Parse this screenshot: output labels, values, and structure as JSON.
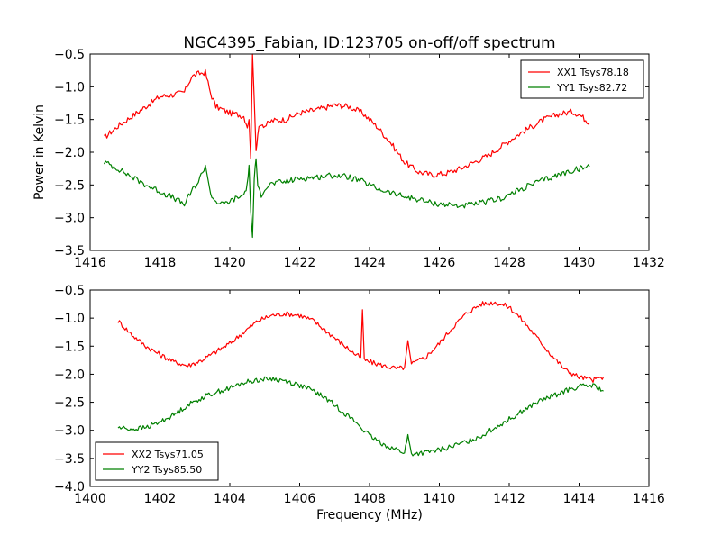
{
  "figure": {
    "title": "NGC4395_Fabian, ID:123705 on-off/off spectrum"
  },
  "chart_data": [
    {
      "type": "line",
      "title": "NGC4395_Fabian, ID:123705 on-off/off spectrum",
      "xlabel": "",
      "ylabel": "Power in Kelvin",
      "xlim": [
        1416,
        1432
      ],
      "ylim": [
        -3.5,
        -0.5
      ],
      "xticks": [
        1416,
        1418,
        1420,
        1422,
        1424,
        1426,
        1428,
        1430,
        1432
      ],
      "yticks": [
        -3.5,
        -3.0,
        -2.5,
        -2.0,
        -1.5,
        -1.0,
        -0.5
      ],
      "xtick_labels": [
        "1416",
        "1418",
        "1420",
        "1422",
        "1424",
        "1426",
        "1428",
        "1430",
        "1432"
      ],
      "ytick_labels": [
        "−3.5",
        "−3.0",
        "−2.5",
        "−2.0",
        "−1.5",
        "−1.0",
        "−0.5"
      ],
      "grid": false,
      "legend": "top-right",
      "series": [
        {
          "name": "XX1 Tsys78.18",
          "color": "#ff0000",
          "x": [
            1416.4,
            1416.8,
            1417.2,
            1417.6,
            1418.0,
            1418.4,
            1418.7,
            1418.9,
            1419.1,
            1419.3,
            1419.45,
            1419.6,
            1419.8,
            1420.0,
            1420.2,
            1420.4,
            1420.5,
            1420.55,
            1420.6,
            1420.65,
            1420.7,
            1420.75,
            1420.8,
            1420.9,
            1421.0,
            1421.2,
            1421.6,
            1422.0,
            1422.5,
            1423.0,
            1423.4,
            1423.8,
            1424.2,
            1424.6,
            1425.0,
            1425.4,
            1425.8,
            1426.2,
            1426.6,
            1427.0,
            1427.4,
            1427.8,
            1428.2,
            1428.6,
            1429.0,
            1429.4,
            1429.8,
            1430.0,
            1430.3
          ],
          "y": [
            -1.78,
            -1.6,
            -1.45,
            -1.3,
            -1.15,
            -1.12,
            -1.08,
            -0.85,
            -0.8,
            -0.78,
            -1.1,
            -1.3,
            -1.35,
            -1.4,
            -1.42,
            -1.45,
            -1.6,
            -1.5,
            -2.1,
            -0.5,
            -1.2,
            -2.0,
            -1.7,
            -1.55,
            -1.6,
            -1.52,
            -1.5,
            -1.4,
            -1.35,
            -1.28,
            -1.3,
            -1.4,
            -1.6,
            -1.85,
            -2.15,
            -2.3,
            -2.35,
            -2.32,
            -2.25,
            -2.15,
            -2.05,
            -1.9,
            -1.75,
            -1.62,
            -1.5,
            -1.42,
            -1.38,
            -1.42,
            -1.55
          ]
        },
        {
          "name": "YY1 Tsys82.72",
          "color": "#008000",
          "x": [
            1416.4,
            1416.8,
            1417.2,
            1417.6,
            1418.0,
            1418.4,
            1418.7,
            1418.9,
            1419.1,
            1419.3,
            1419.45,
            1419.6,
            1419.8,
            1420.0,
            1420.2,
            1420.4,
            1420.5,
            1420.55,
            1420.6,
            1420.65,
            1420.7,
            1420.75,
            1420.8,
            1420.9,
            1421.0,
            1421.2,
            1421.6,
            1422.0,
            1422.5,
            1423.0,
            1423.4,
            1423.8,
            1424.2,
            1424.6,
            1425.0,
            1425.4,
            1425.8,
            1426.2,
            1426.6,
            1427.0,
            1427.4,
            1427.8,
            1428.2,
            1428.6,
            1429.0,
            1429.4,
            1429.8,
            1430.0,
            1430.3
          ],
          "y": [
            -2.15,
            -2.25,
            -2.38,
            -2.5,
            -2.6,
            -2.7,
            -2.8,
            -2.6,
            -2.45,
            -2.2,
            -2.65,
            -2.75,
            -2.8,
            -2.75,
            -2.7,
            -2.65,
            -2.5,
            -2.2,
            -2.9,
            -3.3,
            -2.4,
            -2.1,
            -2.55,
            -2.65,
            -2.55,
            -2.48,
            -2.45,
            -2.4,
            -2.38,
            -2.35,
            -2.38,
            -2.45,
            -2.55,
            -2.62,
            -2.68,
            -2.72,
            -2.78,
            -2.8,
            -2.82,
            -2.8,
            -2.75,
            -2.7,
            -2.6,
            -2.5,
            -2.42,
            -2.35,
            -2.28,
            -2.25,
            -2.22
          ]
        }
      ]
    },
    {
      "type": "line",
      "title": "",
      "xlabel": "Frequency (MHz)",
      "ylabel": "",
      "xlim": [
        1400,
        1416
      ],
      "ylim": [
        -4.0,
        -0.5
      ],
      "xticks": [
        1400,
        1402,
        1404,
        1406,
        1408,
        1410,
        1412,
        1414,
        1416
      ],
      "yticks": [
        -4.0,
        -3.5,
        -3.0,
        -2.5,
        -2.0,
        -1.5,
        -1.0,
        -0.5
      ],
      "xtick_labels": [
        "1400",
        "1402",
        "1404",
        "1406",
        "1408",
        "1410",
        "1412",
        "1414",
        "1416"
      ],
      "ytick_labels": [
        "−4.0",
        "−3.5",
        "−3.0",
        "−2.5",
        "−2.0",
        "−1.5",
        "−1.0",
        "−0.5"
      ],
      "grid": false,
      "legend": "bottom-left",
      "series": [
        {
          "name": "XX2 Tsys71.05",
          "color": "#ff0000",
          "x": [
            1400.8,
            1401.2,
            1401.6,
            1402.0,
            1402.4,
            1402.8,
            1403.2,
            1403.6,
            1404.0,
            1404.4,
            1404.8,
            1405.2,
            1405.6,
            1406.0,
            1406.4,
            1406.8,
            1407.2,
            1407.6,
            1407.75,
            1407.8,
            1407.85,
            1408.0,
            1408.4,
            1408.8,
            1409.0,
            1409.1,
            1409.2,
            1409.6,
            1410.0,
            1410.4,
            1410.8,
            1411.2,
            1411.6,
            1412.0,
            1412.4,
            1412.8,
            1413.2,
            1413.6,
            1414.0,
            1414.4,
            1414.7
          ],
          "y": [
            -1.05,
            -1.3,
            -1.5,
            -1.65,
            -1.78,
            -1.85,
            -1.75,
            -1.6,
            -1.45,
            -1.25,
            -1.05,
            -0.95,
            -0.92,
            -0.95,
            -1.05,
            -1.25,
            -1.45,
            -1.65,
            -1.7,
            -0.85,
            -1.75,
            -1.78,
            -1.85,
            -1.9,
            -1.88,
            -1.4,
            -1.82,
            -1.7,
            -1.45,
            -1.15,
            -0.9,
            -0.75,
            -0.72,
            -0.8,
            -1.05,
            -1.35,
            -1.65,
            -1.92,
            -2.05,
            -2.1,
            -2.05
          ]
        },
        {
          "name": "YY2 Tsys85.50",
          "color": "#008000",
          "x": [
            1400.8,
            1401.2,
            1401.6,
            1402.0,
            1402.4,
            1402.8,
            1403.2,
            1403.6,
            1404.0,
            1404.4,
            1404.8,
            1405.2,
            1405.6,
            1406.0,
            1406.4,
            1406.8,
            1407.2,
            1407.6,
            1408.0,
            1408.4,
            1408.8,
            1409.0,
            1409.1,
            1409.2,
            1409.6,
            1410.0,
            1410.4,
            1410.8,
            1411.2,
            1411.6,
            1412.0,
            1412.4,
            1412.8,
            1413.2,
            1413.6,
            1414.0,
            1414.4,
            1414.7
          ],
          "y": [
            -2.95,
            -2.98,
            -2.95,
            -2.85,
            -2.72,
            -2.55,
            -2.42,
            -2.32,
            -2.25,
            -2.15,
            -2.1,
            -2.08,
            -2.12,
            -2.2,
            -2.3,
            -2.45,
            -2.65,
            -2.85,
            -3.1,
            -3.25,
            -3.35,
            -3.4,
            -3.1,
            -3.42,
            -3.4,
            -3.35,
            -3.28,
            -3.2,
            -3.1,
            -2.95,
            -2.8,
            -2.65,
            -2.5,
            -2.4,
            -2.3,
            -2.22,
            -2.2,
            -2.3
          ]
        }
      ]
    }
  ]
}
